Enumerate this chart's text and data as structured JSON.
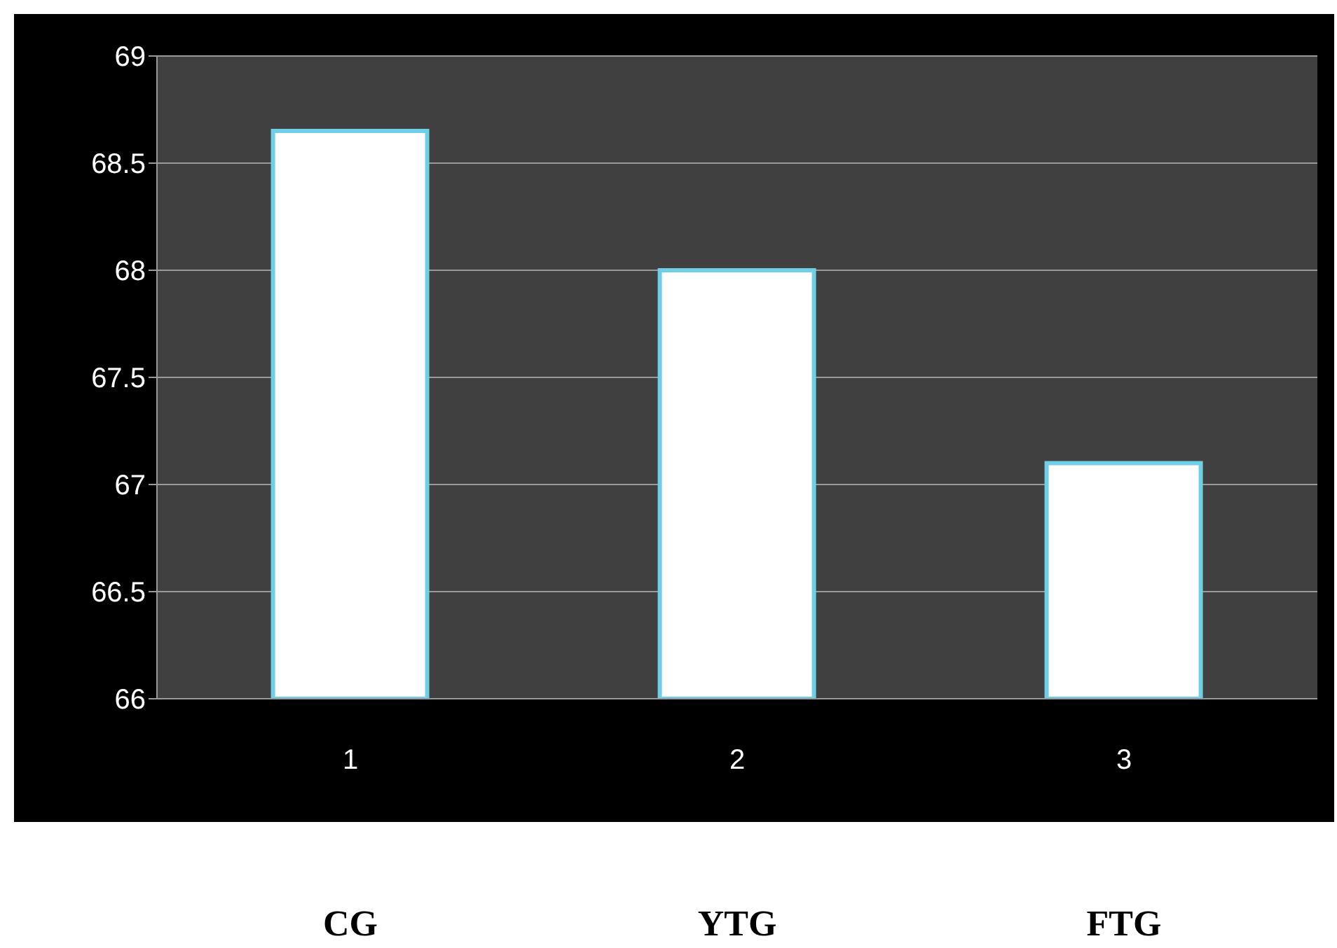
{
  "chart_data": {
    "type": "bar",
    "categories": [
      "1",
      "2",
      "3"
    ],
    "series": [
      {
        "color": "#ffffff",
        "values": [
          68.65,
          68.0,
          67.1
        ]
      }
    ],
    "ylim": [
      66,
      69
    ],
    "yticks": [
      66,
      66.5,
      67,
      67.5,
      68,
      68.5,
      69
    ],
    "grid": "y",
    "legend": false,
    "annotations": [
      "CG",
      "YTG",
      "FTG"
    ]
  }
}
